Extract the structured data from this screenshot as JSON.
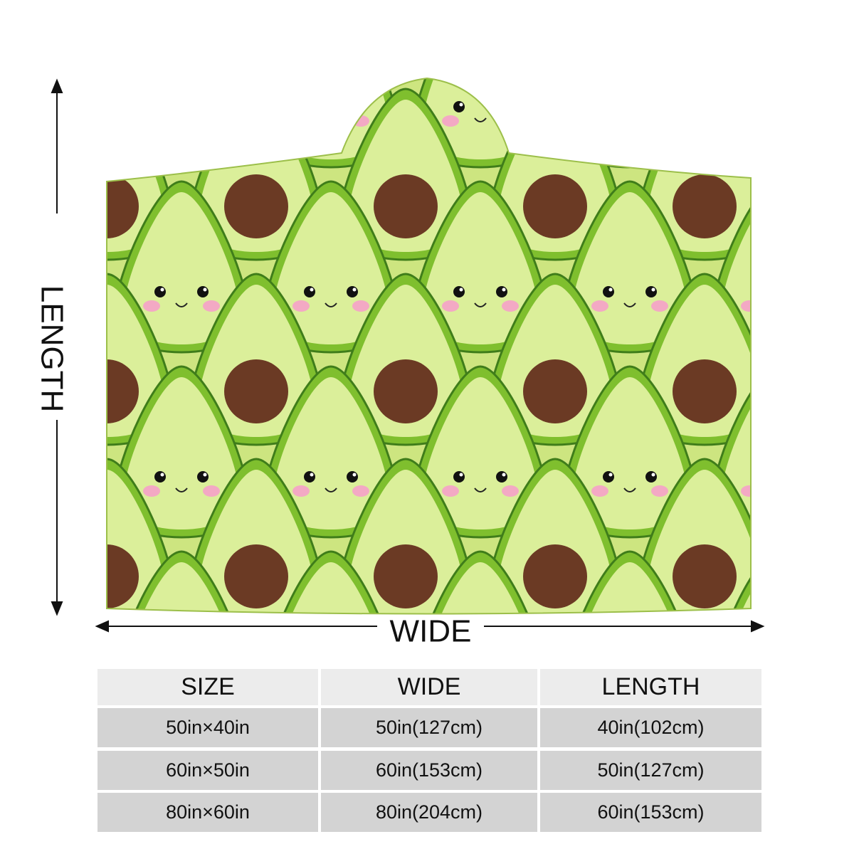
{
  "labels": {
    "length": "LENGTH",
    "wide": "WIDE"
  },
  "table": {
    "header": [
      "SIZE",
      "WIDE",
      "LENGTH"
    ],
    "rows": [
      [
        "50in×40in",
        "50in(127cm)",
        "40in(102cm)"
      ],
      [
        "60in×50in",
        "60in(153cm)",
        "50in(127cm)"
      ],
      [
        "80in×60in",
        "80in(204cm)",
        "60in(153cm)"
      ]
    ]
  }
}
